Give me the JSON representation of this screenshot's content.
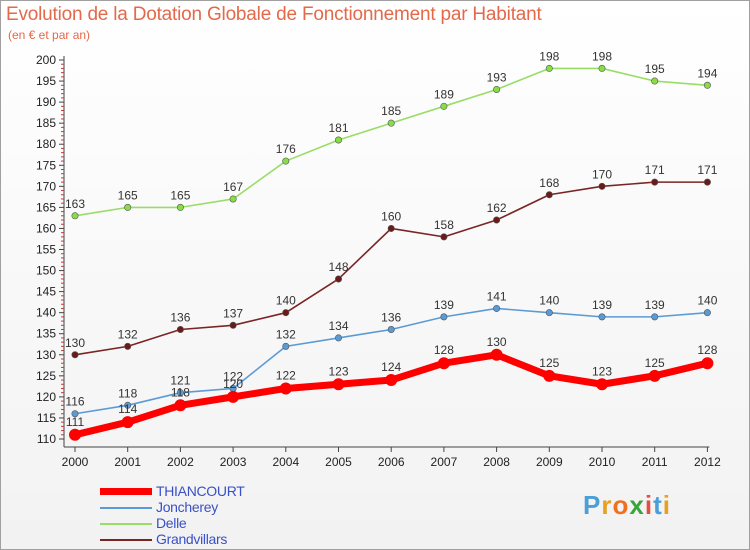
{
  "header": {
    "title": "Evolution de la Dotation Globale de Fonctionnement par Habitant",
    "subtitle": "(en € et par an)"
  },
  "chart_data": {
    "type": "line",
    "title": "Evolution de la Dotation Globale de Fonctionnement par Habitant",
    "subtitle": "(en € et par an)",
    "xlabel": "",
    "ylabel": "",
    "x": [
      "2000",
      "2001",
      "2002",
      "2003",
      "2004",
      "2005",
      "2006",
      "2007",
      "2008",
      "2009",
      "2010",
      "2011",
      "2012"
    ],
    "ylim": [
      110,
      200
    ],
    "yticks": [
      110,
      115,
      120,
      125,
      130,
      135,
      140,
      145,
      150,
      155,
      160,
      165,
      170,
      175,
      180,
      185,
      190,
      195,
      200
    ],
    "grid": false,
    "legend_position": "bottom-left",
    "series": [
      {
        "name": "THIANCOURT",
        "color": "#ff0000",
        "values": [
          111,
          114,
          118,
          120,
          122,
          123,
          124,
          128,
          130,
          125,
          123,
          125,
          128
        ]
      },
      {
        "name": "Joncherey",
        "color": "#5b9bd5",
        "values": [
          116,
          118,
          121,
          122,
          132,
          134,
          136,
          139,
          141,
          140,
          139,
          139,
          140
        ]
      },
      {
        "name": "Delle",
        "color": "#99dd66",
        "values": [
          163,
          165,
          165,
          167,
          176,
          181,
          185,
          189,
          193,
          198,
          198,
          195,
          194
        ]
      },
      {
        "name": "Grandvillars",
        "color": "#7a2424",
        "values": [
          130,
          132,
          136,
          137,
          140,
          148,
          160,
          158,
          162,
          168,
          170,
          171,
          171
        ]
      }
    ]
  },
  "logo": {
    "text": "Proxiti",
    "letters": [
      "P",
      "r",
      "o",
      "x",
      "i",
      "t",
      "i"
    ],
    "colors": [
      "#4a9fd8",
      "#e8a020",
      "#f07020",
      "#3aa53a",
      "#e84c3d",
      "#4a9fd8",
      "#e8a020"
    ]
  }
}
